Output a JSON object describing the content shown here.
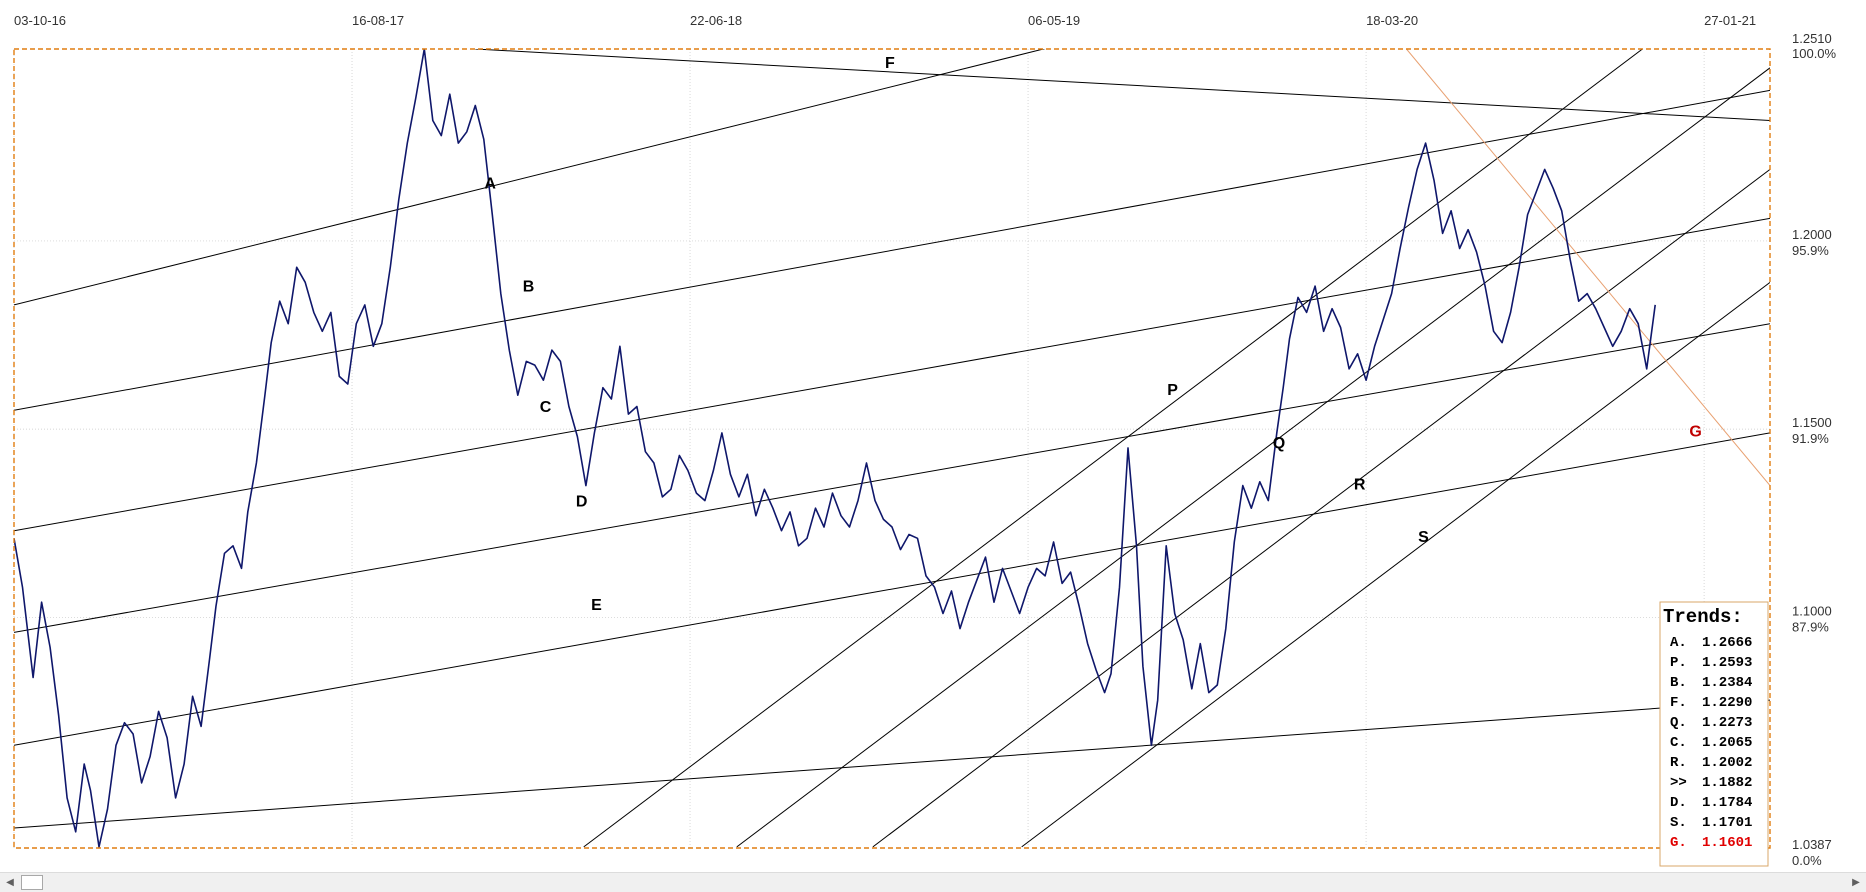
{
  "chart_data": {
    "type": "line",
    "x_dates": [
      "03-10-16",
      "16-08-17",
      "22-06-18",
      "06-05-19",
      "18-03-20",
      "27-01-21"
    ],
    "price_levels": [
      {
        "value": "1.2510",
        "percent": "100.0%"
      },
      {
        "value": "1.2000",
        "percent": "95.9%"
      },
      {
        "value": "1.1500",
        "percent": "91.9%"
      },
      {
        "value": "1.1000",
        "percent": "87.9%"
      },
      {
        "value": "1.0387",
        "percent": "0.0%"
      }
    ],
    "ylim": [
      1.0387,
      1.251
    ],
    "grid": true,
    "series": [
      {
        "color": "#0f176b",
        "points": [
          [
            0,
            1.121
          ],
          [
            4,
            1.108
          ],
          [
            9,
            1.084
          ],
          [
            13,
            1.104
          ],
          [
            17,
            1.092
          ],
          [
            21,
            1.074
          ],
          [
            25,
            1.052
          ],
          [
            29,
            1.043
          ],
          [
            33,
            1.061
          ],
          [
            36,
            1.054
          ],
          [
            40,
            1.039
          ],
          [
            44,
            1.049
          ],
          [
            48,
            1.066
          ],
          [
            52,
            1.072
          ],
          [
            56,
            1.069
          ],
          [
            60,
            1.056
          ],
          [
            64,
            1.063
          ],
          [
            68,
            1.075
          ],
          [
            72,
            1.068
          ],
          [
            76,
            1.052
          ],
          [
            80,
            1.061
          ],
          [
            84,
            1.079
          ],
          [
            88,
            1.071
          ],
          [
            92,
            1.089
          ],
          [
            95,
            1.103
          ],
          [
            99,
            1.117
          ],
          [
            103,
            1.119
          ],
          [
            107,
            1.113
          ],
          [
            110,
            1.128
          ],
          [
            114,
            1.141
          ],
          [
            118,
            1.159
          ],
          [
            121,
            1.173
          ],
          [
            125,
            1.184
          ],
          [
            129,
            1.178
          ],
          [
            133,
            1.193
          ],
          [
            137,
            1.189
          ],
          [
            141,
            1.181
          ],
          [
            145,
            1.176
          ],
          [
            149,
            1.181
          ],
          [
            153,
            1.164
          ],
          [
            157,
            1.162
          ],
          [
            161,
            1.178
          ],
          [
            165,
            1.183
          ],
          [
            169,
            1.172
          ],
          [
            173,
            1.178
          ],
          [
            177,
            1.193
          ],
          [
            181,
            1.211
          ],
          [
            185,
            1.226
          ],
          [
            189,
            1.238
          ],
          [
            193,
            1.251
          ],
          [
            197,
            1.232
          ],
          [
            201,
            1.228
          ],
          [
            205,
            1.239
          ],
          [
            209,
            1.226
          ],
          [
            213,
            1.229
          ],
          [
            217,
            1.236
          ],
          [
            221,
            1.227
          ],
          [
            225,
            1.207
          ],
          [
            229,
            1.186
          ],
          [
            233,
            1.171
          ],
          [
            237,
            1.159
          ],
          [
            241,
            1.168
          ],
          [
            245,
            1.167
          ],
          [
            249,
            1.163
          ],
          [
            253,
            1.171
          ],
          [
            257,
            1.168
          ],
          [
            261,
            1.156
          ],
          [
            265,
            1.148
          ],
          [
            269,
            1.135
          ],
          [
            273,
            1.149
          ],
          [
            277,
            1.161
          ],
          [
            281,
            1.158
          ],
          [
            285,
            1.172
          ],
          [
            289,
            1.154
          ],
          [
            293,
            1.156
          ],
          [
            297,
            1.144
          ],
          [
            301,
            1.141
          ],
          [
            305,
            1.132
          ],
          [
            309,
            1.134
          ],
          [
            313,
            1.143
          ],
          [
            317,
            1.139
          ],
          [
            321,
            1.133
          ],
          [
            325,
            1.131
          ],
          [
            329,
            1.139
          ],
          [
            333,
            1.149
          ],
          [
            337,
            1.138
          ],
          [
            341,
            1.132
          ],
          [
            345,
            1.138
          ],
          [
            349,
            1.127
          ],
          [
            353,
            1.134
          ],
          [
            357,
            1.129
          ],
          [
            361,
            1.123
          ],
          [
            365,
            1.128
          ],
          [
            369,
            1.119
          ],
          [
            373,
            1.121
          ],
          [
            377,
            1.129
          ],
          [
            381,
            1.124
          ],
          [
            385,
            1.133
          ],
          [
            389,
            1.127
          ],
          [
            393,
            1.124
          ],
          [
            397,
            1.131
          ],
          [
            401,
            1.141
          ],
          [
            405,
            1.131
          ],
          [
            409,
            1.126
          ],
          [
            413,
            1.124
          ],
          [
            417,
            1.118
          ],
          [
            421,
            1.122
          ],
          [
            425,
            1.121
          ],
          [
            429,
            1.111
          ],
          [
            433,
            1.108
          ],
          [
            437,
            1.101
          ],
          [
            441,
            1.107
          ],
          [
            445,
            1.097
          ],
          [
            449,
            1.104
          ],
          [
            453,
            1.11
          ],
          [
            457,
            1.116
          ],
          [
            461,
            1.104
          ],
          [
            465,
            1.113
          ],
          [
            469,
            1.107
          ],
          [
            473,
            1.101
          ],
          [
            477,
            1.108
          ],
          [
            481,
            1.113
          ],
          [
            485,
            1.111
          ],
          [
            489,
            1.12
          ],
          [
            493,
            1.109
          ],
          [
            497,
            1.112
          ],
          [
            501,
            1.103
          ],
          [
            505,
            1.093
          ],
          [
            509,
            1.086
          ],
          [
            513,
            1.08
          ],
          [
            516,
            1.085
          ],
          [
            520,
            1.108
          ],
          [
            524,
            1.145
          ],
          [
            528,
            1.119
          ],
          [
            531,
            1.087
          ],
          [
            535,
            1.066
          ],
          [
            538,
            1.078
          ],
          [
            542,
            1.119
          ],
          [
            546,
            1.101
          ],
          [
            550,
            1.094
          ],
          [
            554,
            1.081
          ],
          [
            558,
            1.093
          ],
          [
            562,
            1.08
          ],
          [
            566,
            1.082
          ],
          [
            570,
            1.097
          ],
          [
            574,
            1.12
          ],
          [
            578,
            1.135
          ],
          [
            582,
            1.129
          ],
          [
            586,
            1.136
          ],
          [
            590,
            1.131
          ],
          [
            594,
            1.149
          ],
          [
            597,
            1.161
          ],
          [
            600,
            1.174
          ],
          [
            604,
            1.185
          ],
          [
            608,
            1.181
          ],
          [
            612,
            1.188
          ],
          [
            616,
            1.176
          ],
          [
            620,
            1.182
          ],
          [
            624,
            1.177
          ],
          [
            628,
            1.166
          ],
          [
            632,
            1.17
          ],
          [
            636,
            1.163
          ],
          [
            640,
            1.172
          ],
          [
            644,
            1.179
          ],
          [
            648,
            1.186
          ],
          [
            652,
            1.198
          ],
          [
            656,
            1.209
          ],
          [
            660,
            1.219
          ],
          [
            664,
            1.226
          ],
          [
            668,
            1.216
          ],
          [
            672,
            1.202
          ],
          [
            676,
            1.208
          ],
          [
            680,
            1.198
          ],
          [
            684,
            1.203
          ],
          [
            688,
            1.197
          ],
          [
            692,
            1.188
          ],
          [
            696,
            1.176
          ],
          [
            700,
            1.173
          ],
          [
            704,
            1.181
          ],
          [
            708,
            1.193
          ],
          [
            712,
            1.207
          ],
          [
            716,
            1.213
          ],
          [
            720,
            1.219
          ],
          [
            724,
            1.214
          ],
          [
            728,
            1.208
          ],
          [
            732,
            1.195
          ],
          [
            736,
            1.184
          ],
          [
            740,
            1.186
          ],
          [
            744,
            1.182
          ],
          [
            748,
            1.177
          ],
          [
            752,
            1.172
          ],
          [
            756,
            1.176
          ],
          [
            760,
            1.182
          ],
          [
            764,
            1.178
          ],
          [
            768,
            1.166
          ],
          [
            772,
            1.183
          ]
        ]
      }
    ],
    "trend_lines": [
      {
        "label": "A",
        "from": [
          0,
          1.183
        ],
        "to": [
          826,
          1.299
        ],
        "color": "#000000"
      },
      {
        "label": "B",
        "from": [
          0,
          1.155
        ],
        "to": [
          826,
          1.24
        ],
        "color": "#000000"
      },
      {
        "label": "C",
        "from": [
          0,
          1.123
        ],
        "to": [
          826,
          1.206
        ],
        "color": "#000000"
      },
      {
        "label": "D",
        "from": [
          0,
          1.096
        ],
        "to": [
          826,
          1.178
        ],
        "color": "#000000"
      },
      {
        "label": "E",
        "from": [
          0,
          1.066
        ],
        "to": [
          826,
          1.149
        ],
        "color": "#000000"
      },
      {
        "label": "F",
        "from": [
          217,
          1.251
        ],
        "to": [
          826,
          1.232
        ],
        "color": "#000000"
      },
      {
        "label": "",
        "from": [
          0,
          1.044
        ],
        "to": [
          826,
          1.078
        ],
        "color": "#000000"
      },
      {
        "label": "P",
        "from": [
          268,
          1.039
        ],
        "to": [
          766,
          1.251
        ],
        "color": "#000000"
      },
      {
        "label": "Q",
        "from": [
          340,
          1.039
        ],
        "to": [
          826,
          1.246
        ],
        "color": "#000000"
      },
      {
        "label": "R",
        "from": [
          404,
          1.039
        ],
        "to": [
          826,
          1.219
        ],
        "color": "#000000"
      },
      {
        "label": "S",
        "from": [
          474,
          1.039
        ],
        "to": [
          826,
          1.189
        ],
        "color": "#000000"
      },
      {
        "label": "G",
        "from": [
          655,
          1.251
        ],
        "to": [
          826,
          1.135
        ],
        "color": "#e8a070"
      }
    ],
    "trend_labels": [
      {
        "text": "A",
        "x": 224,
        "y": 1.2139,
        "color": "#000000"
      },
      {
        "text": "B",
        "x": 242,
        "y": 1.1865,
        "color": "#000000"
      },
      {
        "text": "C",
        "x": 250,
        "y": 1.1545,
        "color": "#000000"
      },
      {
        "text": "D",
        "x": 267,
        "y": 1.1295,
        "color": "#000000"
      },
      {
        "text": "E",
        "x": 274,
        "y": 1.102,
        "color": "#000000"
      },
      {
        "text": "F",
        "x": 412,
        "y": 1.246,
        "color": "#000000"
      },
      {
        "text": "P",
        "x": 545,
        "y": 1.159,
        "color": "#000000"
      },
      {
        "text": "Q",
        "x": 595,
        "y": 1.145,
        "color": "#000000"
      },
      {
        "text": "R",
        "x": 633,
        "y": 1.134,
        "color": "#000000"
      },
      {
        "text": "S",
        "x": 663,
        "y": 1.12,
        "color": "#000000"
      },
      {
        "text": "G",
        "x": 791,
        "y": 1.148,
        "color": "#c00000"
      }
    ],
    "legend": {
      "title": "Trends:",
      "placement": "bottom-right",
      "entries": [
        {
          "label": "A.",
          "value": "1.2666",
          "color": "#000000"
        },
        {
          "label": "P.",
          "value": "1.2593",
          "color": "#000000"
        },
        {
          "label": "B.",
          "value": "1.2384",
          "color": "#000000"
        },
        {
          "label": "F.",
          "value": "1.2290",
          "color": "#000000"
        },
        {
          "label": "Q.",
          "value": "1.2273",
          "color": "#000000"
        },
        {
          "label": "C.",
          "value": "1.2065",
          "color": "#000000"
        },
        {
          "label": "R.",
          "value": "1.2002",
          "color": "#000000"
        },
        {
          "label": ">>",
          "value": "1.1882",
          "color": "#000000"
        },
        {
          "label": "D.",
          "value": "1.1784",
          "color": "#000000"
        },
        {
          "label": "S.",
          "value": "1.1701",
          "color": "#000000"
        },
        {
          "label": "G.",
          "value": "1.1601",
          "color": "#e00000"
        }
      ]
    },
    "colors": {
      "price_line": "#0f176b",
      "frame": "#e07d10",
      "grid": "#c8c8c8",
      "axis_text": "#333333",
      "highlight": "#e00000"
    }
  },
  "scrollbar": {
    "left_arrow": "◀",
    "right_arrow": "▶"
  }
}
